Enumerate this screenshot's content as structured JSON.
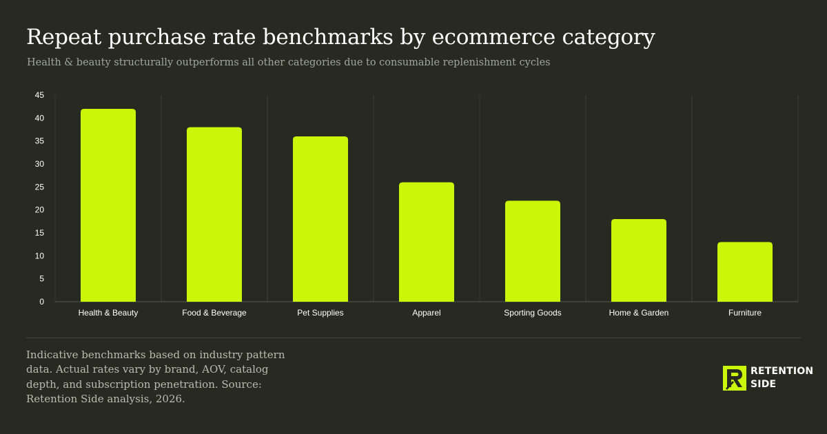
{
  "header": {
    "title": "Repeat purchase rate benchmarks by ecommerce category",
    "subtitle": "Health & beauty structurally outperforms all other categories due to consumable replenishment cycles"
  },
  "chart_data": {
    "type": "bar",
    "categories": [
      "Health & Beauty",
      "Food & Beverage",
      "Pet Supplies",
      "Apparel",
      "Sporting Goods",
      "Home & Garden",
      "Furniture"
    ],
    "values": [
      42,
      38,
      36,
      26,
      22,
      18,
      13
    ],
    "xlabel": "",
    "ylabel": "",
    "ylim": [
      0,
      45
    ],
    "yticks": [
      0,
      5,
      10,
      15,
      20,
      25,
      30,
      35,
      40,
      45
    ],
    "grid": "vertical category separators",
    "legend": "none",
    "bar_color": "#ccf50a"
  },
  "footer": {
    "note": "Indicative benchmarks based on industry pattern data. Actual rates vary by brand, AOV, catalog depth, and subscription penetration. Source: Retention Side analysis, 2026.",
    "brand_line1": "RETENTION",
    "brand_line2": "SIDE",
    "brand_icon": "retention-side-logo-icon"
  },
  "colors": {
    "background": "#282a21",
    "accent": "#ccf50a",
    "text": "#ffffff",
    "muted": "#a3a79a"
  }
}
